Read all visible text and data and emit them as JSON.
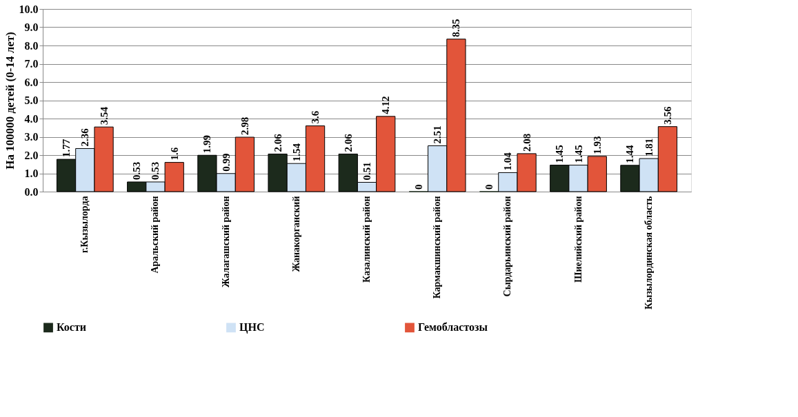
{
  "chart_data": {
    "type": "bar",
    "ylabel": "На 100000 детей (0-14 лет)",
    "categories": [
      "г.Кызылорда",
      "Аральский район",
      "Жалагашский район",
      "Жанакорганский",
      "Казалинский район",
      "Кармакшинский район",
      "Сырдарьинский район",
      "Шиелийский район",
      "Кызылординская область"
    ],
    "series": [
      {
        "name": "Кости",
        "color": "#1c2a1c",
        "values": [
          1.77,
          0.53,
          1.99,
          2.06,
          2.06,
          0,
          0,
          1.45,
          1.44
        ]
      },
      {
        "name": "ЦНС",
        "color": "#cfe2f5",
        "values": [
          2.36,
          0.53,
          0.99,
          1.54,
          0.51,
          2.51,
          1.04,
          1.45,
          1.81
        ]
      },
      {
        "name": "Гемобластозы",
        "color": "#e2553a",
        "values": [
          3.54,
          1.6,
          2.98,
          3.6,
          4.12,
          8.35,
          2.08,
          1.93,
          3.56
        ]
      }
    ],
    "ylim": [
      0,
      10
    ],
    "yticks": [
      {
        "value": 0,
        "label": "0.0"
      },
      {
        "value": 1,
        "label": "1.0"
      },
      {
        "value": 2,
        "label": "2.0"
      },
      {
        "value": 3,
        "label": "3.0"
      },
      {
        "value": 4,
        "label": "4.0"
      },
      {
        "value": 5,
        "label": "5.0"
      },
      {
        "value": 6,
        "label": "6.0"
      },
      {
        "value": 7,
        "label": "7.0"
      },
      {
        "value": 8,
        "label": "8.0"
      },
      {
        "value": 9,
        "label": "9.0"
      },
      {
        "value": 10,
        "label": "10.0"
      }
    ],
    "grid": "y",
    "legend": "bottom",
    "data_labels": true
  }
}
